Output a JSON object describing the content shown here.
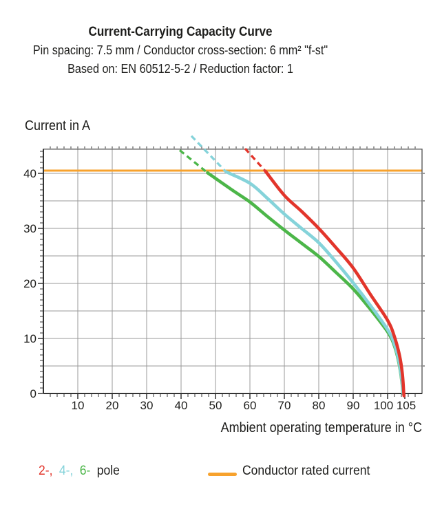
{
  "header": {
    "title": "Current-Carrying Capacity Curve",
    "subtitle_spec": "Pin spacing: 7.5 mm / Conductor cross-section: 6 mm² \"f-st\"",
    "subtitle_basis": "Based on: EN 60512-5-2 / Reduction factor: 1"
  },
  "axes": {
    "y_label": "Current in A",
    "x_label": "Ambient operating temperature in °C"
  },
  "legend": {
    "pole_items": [
      {
        "label": "2-,"
      },
      {
        "label": "4-,"
      },
      {
        "label": "6-"
      }
    ],
    "pole_suffix": "pole",
    "rated_label": "Conductor rated current"
  },
  "chart_data": {
    "type": "line",
    "title": "Current-Carrying Capacity Curve",
    "xlabel": "Ambient operating temperature in °C",
    "ylabel": "Current in A",
    "xlim": [
      0,
      110
    ],
    "ylim": [
      0,
      44.4
    ],
    "grid": "on",
    "legend_position": "bottom",
    "x_major_ticks": [
      10,
      20,
      30,
      40,
      50,
      60,
      70,
      80,
      90,
      100,
      105
    ],
    "x_tick_labels": [
      "10",
      "20",
      "30",
      "40",
      "50",
      "60",
      "70",
      "80",
      "90",
      "100",
      "105"
    ],
    "y_major_ticks": [
      0,
      10,
      20,
      30,
      40
    ],
    "y_tick_labels": [
      "0",
      "10",
      "20",
      "30",
      "40"
    ],
    "x_minor_step": 2,
    "y_minor_step": 1,
    "grid_x": [
      10,
      20,
      30,
      40,
      50,
      60,
      70,
      80,
      90,
      100
    ],
    "grid_y": [
      5,
      10,
      15,
      20,
      25,
      30,
      35,
      40
    ],
    "rated_current": 40.5,
    "rated_color": "#f7a22d",
    "grid_color": "#999999",
    "series": [
      {
        "name": "2-pole",
        "color": "#e2352b",
        "dashed": [
          [
            58.6,
            44.5
          ],
          [
            64.5,
            40.4
          ]
        ],
        "solid": [
          [
            64.5,
            40.4
          ],
          [
            70,
            36.0
          ],
          [
            75,
            33.1
          ],
          [
            80,
            30.0
          ],
          [
            85,
            26.5
          ],
          [
            90,
            22.8
          ],
          [
            95,
            18.0
          ],
          [
            100,
            13.3
          ],
          [
            102,
            10.3
          ],
          [
            103.5,
            6.8
          ],
          [
            104.3,
            3.5
          ],
          [
            104.7,
            0
          ],
          [
            104.75,
            -0.4
          ]
        ]
      },
      {
        "name": "4-pole",
        "color": "#85d3da",
        "dashed": [
          [
            43.0,
            46.8
          ],
          [
            53,
            40.3
          ]
        ],
        "solid": [
          [
            53,
            40.3
          ],
          [
            60,
            38.2
          ],
          [
            65,
            35.5
          ],
          [
            70,
            32.6
          ],
          [
            75,
            30.0
          ],
          [
            80,
            27.4
          ],
          [
            85,
            23.9
          ],
          [
            90,
            20.1
          ],
          [
            95,
            16.0
          ],
          [
            100,
            11.6
          ],
          [
            102,
            8.9
          ],
          [
            103.5,
            5.2
          ],
          [
            104.3,
            1.5
          ],
          [
            104.5,
            0
          ]
        ]
      },
      {
        "name": "6-pole",
        "color": "#4cb649",
        "dashed": [
          [
            39.6,
            44.2
          ],
          [
            47.7,
            40.1
          ]
        ],
        "solid": [
          [
            47.7,
            40.1
          ],
          [
            55,
            36.9
          ],
          [
            60,
            34.8
          ],
          [
            65,
            32.2
          ],
          [
            70,
            29.7
          ],
          [
            75,
            27.3
          ],
          [
            80,
            24.9
          ],
          [
            85,
            22.0
          ],
          [
            90,
            19.0
          ],
          [
            95,
            15.3
          ],
          [
            100,
            11.2
          ],
          [
            102,
            8.6
          ],
          [
            103.4,
            5.2
          ],
          [
            104.2,
            1.8
          ],
          [
            104.45,
            0
          ]
        ]
      }
    ]
  }
}
